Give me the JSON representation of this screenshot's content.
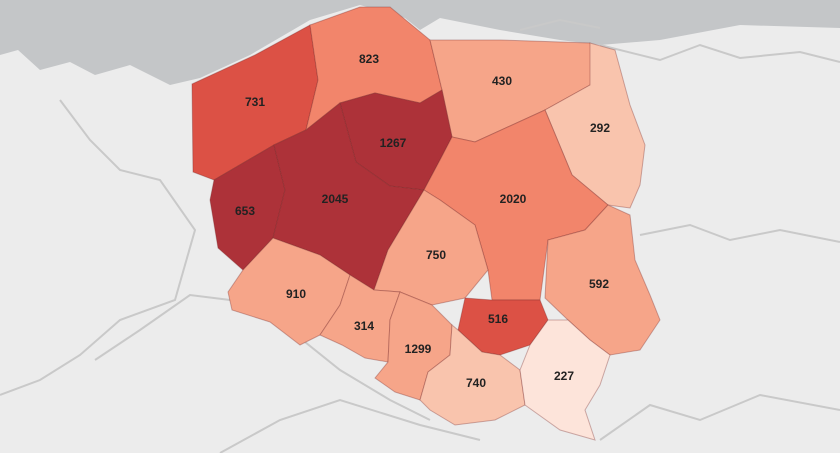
{
  "map": {
    "colors": {
      "sea": "#c4c6c8",
      "land": "#ececec",
      "border": "#c9c9c9",
      "label": "#222222"
    },
    "regions": [
      {
        "id": "zachodniopomorskie",
        "value": "731",
        "color": "#dc5145"
      },
      {
        "id": "pomorskie",
        "value": "823",
        "color": "#f2856b"
      },
      {
        "id": "warminsko-mazurskie",
        "value": "430",
        "color": "#f6a589"
      },
      {
        "id": "podlaskie",
        "value": "292",
        "color": "#f9c4ad"
      },
      {
        "id": "kujawsko-pomorskie",
        "value": "1267",
        "color": "#ad3239"
      },
      {
        "id": "lubuskie",
        "value": "653",
        "color": "#ad3239"
      },
      {
        "id": "wielkopolskie",
        "value": "2045",
        "color": "#ad3239"
      },
      {
        "id": "mazowieckie",
        "value": "2020",
        "color": "#f2856b"
      },
      {
        "id": "lodzkie",
        "value": "750",
        "color": "#f6a589"
      },
      {
        "id": "lubelskie",
        "value": "592",
        "color": "#f6a589"
      },
      {
        "id": "dolnoslaskie",
        "value": "910",
        "color": "#f6a589"
      },
      {
        "id": "opolskie",
        "value": "314",
        "color": "#f6a589"
      },
      {
        "id": "slaskie",
        "value": "1299",
        "color": "#f6a589"
      },
      {
        "id": "swietokrzyskie",
        "value": "516",
        "color": "#dc5145"
      },
      {
        "id": "malopolskie",
        "value": "740",
        "color": "#f9c4ad"
      },
      {
        "id": "podkarpackie",
        "value": "227",
        "color": "#fde4da"
      }
    ]
  }
}
